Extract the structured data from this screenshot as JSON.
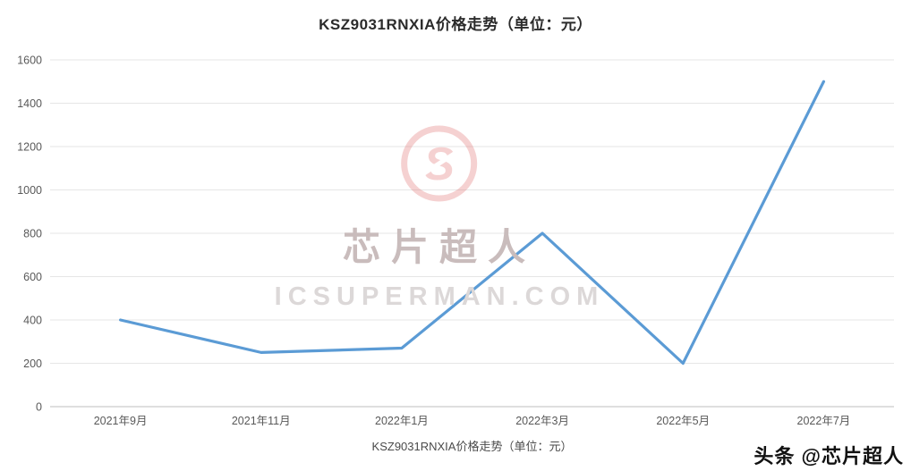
{
  "title": "KSZ9031RNXIA价格走势（单位：元）",
  "caption": "KSZ9031RNXIA价格走势（单位：元）",
  "watermark": {
    "name": "芯片超人",
    "site": "ICSUPERMAN.COM",
    "logo_color": "#e06a6a"
  },
  "badge": "头条 @芯片超人",
  "chart_data": {
    "type": "line",
    "title": "KSZ9031RNXIA价格走势（单位：元）",
    "categories": [
      "2021年9月",
      "2021年11月",
      "2022年1月",
      "2022年3月",
      "2022年5月",
      "2022年7月"
    ],
    "values": [
      400,
      250,
      270,
      800,
      200,
      1500
    ],
    "xlabel": "",
    "ylabel": "",
    "ylim": [
      0,
      1600
    ],
    "ytick_step": 200,
    "line_color": "#5b9bd5",
    "grid": true,
    "grid_color": "#e6e6e6",
    "axis_color": "#bfbfbf",
    "legend_position": "bottom"
  }
}
